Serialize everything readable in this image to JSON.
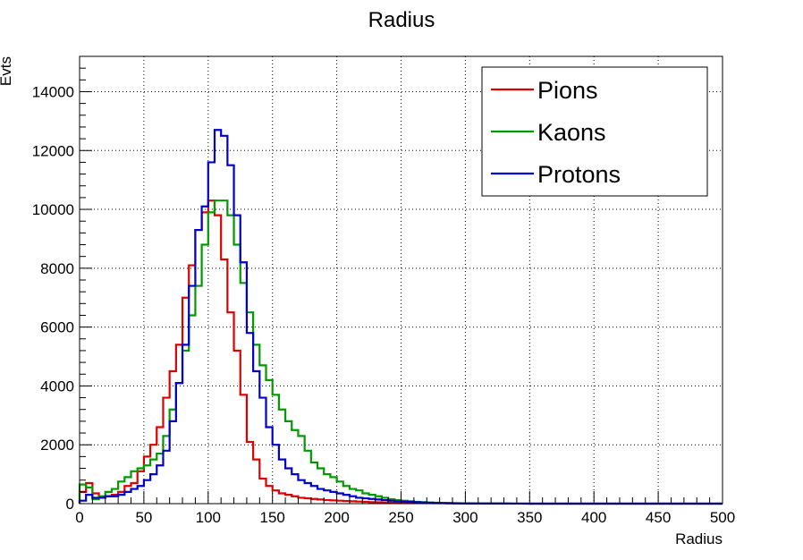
{
  "chart_data": {
    "type": "line",
    "style": "step-histogram",
    "title": "Radius",
    "xlabel": "Radius",
    "ylabel": "Evts",
    "xlim": [
      0,
      500
    ],
    "ylim": [
      0,
      15200
    ],
    "bin_width": 5,
    "x_ticks": [
      0,
      50,
      100,
      150,
      200,
      250,
      300,
      350,
      400,
      450,
      500
    ],
    "y_ticks": [
      0,
      2000,
      4000,
      6000,
      8000,
      10000,
      12000,
      14000
    ],
    "grid": true,
    "legend_position": "top-right",
    "series": [
      {
        "name": "Pions",
        "color": "#dd0000",
        "values": [
          400,
          700,
          350,
          200,
          250,
          300,
          400,
          600,
          700,
          1100,
          1600,
          2000,
          2600,
          3600,
          4500,
          5400,
          7000,
          8100,
          9300,
          9900,
          10300,
          9800,
          8300,
          6500,
          5200,
          3700,
          2100,
          1500,
          850,
          600,
          450,
          350,
          300,
          250,
          200,
          180,
          160,
          140,
          120,
          110,
          100,
          90,
          80,
          70,
          60,
          50,
          45,
          40,
          35,
          30,
          28,
          25,
          22,
          20,
          18,
          16,
          14,
          12,
          10,
          8,
          7,
          6,
          5,
          4,
          4,
          3,
          3,
          2,
          2,
          2,
          1,
          1,
          1,
          1,
          1,
          1,
          1,
          1,
          1,
          1,
          1,
          1,
          1,
          1,
          1,
          1,
          1,
          1,
          1,
          1,
          1,
          1,
          1,
          1,
          1,
          1,
          1,
          1,
          1,
          1
        ]
      },
      {
        "name": "Kaons",
        "color": "#009900",
        "values": [
          650,
          550,
          150,
          250,
          400,
          500,
          750,
          900,
          1100,
          1200,
          1300,
          1500,
          1700,
          2300,
          3200,
          4100,
          5200,
          6400,
          7400,
          8800,
          9900,
          10300,
          10300,
          9800,
          8800,
          7500,
          6500,
          5400,
          4700,
          4200,
          3700,
          3200,
          2800,
          2500,
          2300,
          1800,
          1400,
          1200,
          1000,
          900,
          750,
          600,
          500,
          450,
          350,
          300,
          250,
          200,
          150,
          120,
          100,
          80,
          60,
          50,
          40,
          30,
          25,
          20,
          15,
          12,
          10,
          8,
          6,
          5,
          4,
          3,
          3,
          2,
          2,
          2,
          1,
          1,
          1,
          1,
          1,
          1,
          1,
          1,
          1,
          1,
          1,
          1,
          1,
          1,
          1,
          1,
          1,
          1,
          1,
          1,
          1,
          1,
          1,
          1,
          1,
          1,
          1,
          1,
          1,
          1
        ]
      },
      {
        "name": "Protons",
        "color": "#0000cc",
        "values": [
          100,
          300,
          200,
          200,
          250,
          250,
          300,
          400,
          500,
          600,
          800,
          1000,
          1300,
          1800,
          2800,
          4100,
          5400,
          7400,
          9300,
          10100,
          11600,
          12700,
          12500,
          11500,
          9800,
          8200,
          5800,
          4500,
          3600,
          2600,
          2000,
          1500,
          1200,
          1000,
          800,
          700,
          600,
          500,
          450,
          400,
          350,
          300,
          250,
          200,
          180,
          160,
          140,
          120,
          100,
          80,
          70,
          60,
          50,
          40,
          30,
          25,
          20,
          15,
          12,
          10,
          8,
          6,
          5,
          4,
          3,
          3,
          2,
          2,
          2,
          1,
          1,
          1,
          1,
          1,
          1,
          1,
          1,
          1,
          1,
          1,
          1,
          1,
          1,
          1,
          1,
          1,
          1,
          1,
          1,
          1,
          1,
          1,
          1,
          1,
          1,
          1,
          1,
          1,
          1,
          1
        ]
      }
    ]
  }
}
